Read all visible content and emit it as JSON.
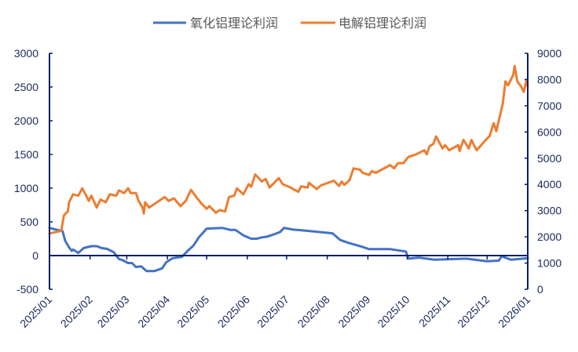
{
  "chart_data": {
    "type": "line",
    "title": "",
    "xlabel": "",
    "ylabel_left": "",
    "ylabel_right": "",
    "legend_position": "top",
    "grid": false,
    "axis_color": "#002060",
    "x_ticks": [
      "2025/01",
      "2025/02",
      "2025/03",
      "2025/04",
      "2025/05",
      "2025/06",
      "2025/07",
      "2025/08",
      "2025/09",
      "2025/10",
      "2025/11",
      "2025/12",
      "2026/01"
    ],
    "x_range": [
      "2025-01-01",
      "2026-01-01"
    ],
    "y_left": {
      "range": [
        -500,
        3000
      ],
      "ticks": [
        "-500",
        "0",
        "500",
        "1000",
        "1500",
        "2000",
        "2500",
        "3000"
      ]
    },
    "y_right": {
      "range": [
        0,
        9000
      ],
      "ticks": [
        "0",
        "1000",
        "2000",
        "3000",
        "4000",
        "5000",
        "6000",
        "7000",
        "8000",
        "9000"
      ]
    },
    "series": [
      {
        "name": "氧化铝理论利润",
        "axis": "left",
        "color": "#4472C4",
        "points": [
          [
            "2025-01-01",
            410
          ],
          [
            "2025-01-11",
            360
          ],
          [
            "2025-01-13",
            220
          ],
          [
            "2025-01-16",
            120
          ],
          [
            "2025-01-18",
            70
          ],
          [
            "2025-01-19",
            90
          ],
          [
            "2025-01-23",
            40
          ],
          [
            "2025-01-27",
            110
          ],
          [
            "2025-02-02",
            140
          ],
          [
            "2025-02-06",
            140
          ],
          [
            "2025-02-10",
            110
          ],
          [
            "2025-02-14",
            100
          ],
          [
            "2025-02-19",
            50
          ],
          [
            "2025-02-23",
            -50
          ],
          [
            "2025-02-26",
            -70
          ],
          [
            "2025-03-02",
            -110
          ],
          [
            "2025-03-05",
            -110
          ],
          [
            "2025-03-08",
            -170
          ],
          [
            "2025-03-12",
            -160
          ],
          [
            "2025-03-16",
            -230
          ],
          [
            "2025-03-22",
            -230
          ],
          [
            "2025-03-28",
            -190
          ],
          [
            "2025-03-31",
            -100
          ],
          [
            "2025-04-05",
            -40
          ],
          [
            "2025-04-12",
            -20
          ],
          [
            "2025-04-17",
            80
          ],
          [
            "2025-04-21",
            150
          ],
          [
            "2025-04-25",
            270
          ],
          [
            "2025-05-01",
            400
          ],
          [
            "2025-05-13",
            410
          ],
          [
            "2025-05-19",
            380
          ],
          [
            "2025-05-23",
            380
          ],
          [
            "2025-05-29",
            300
          ],
          [
            "2025-06-04",
            250
          ],
          [
            "2025-06-08",
            250
          ],
          [
            "2025-06-12",
            270
          ],
          [
            "2025-06-16",
            280
          ],
          [
            "2025-06-22",
            320
          ],
          [
            "2025-06-26",
            350
          ],
          [
            "2025-06-29",
            410
          ],
          [
            "2025-07-06",
            385
          ],
          [
            "2025-07-18",
            365
          ],
          [
            "2025-08-05",
            330
          ],
          [
            "2025-08-11",
            230
          ],
          [
            "2025-08-17",
            190
          ],
          [
            "2025-08-27",
            135
          ],
          [
            "2025-09-02",
            95
          ],
          [
            "2025-09-18",
            95
          ],
          [
            "2025-09-30",
            60
          ],
          [
            "2025-10-02",
            -45
          ],
          [
            "2025-10-10",
            -30
          ],
          [
            "2025-10-22",
            -60
          ],
          [
            "2025-11-15",
            -45
          ],
          [
            "2025-12-01",
            -85
          ],
          [
            "2025-12-10",
            -75
          ],
          [
            "2025-12-12",
            -10
          ],
          [
            "2025-12-19",
            -60
          ],
          [
            "2026-01-01",
            -40
          ]
        ]
      },
      {
        "name": "电解铝理论利润",
        "axis": "right",
        "color": "#ED7D31",
        "points": [
          [
            "2025-01-01",
            2130
          ],
          [
            "2025-01-10",
            2230
          ],
          [
            "2025-01-12",
            2820
          ],
          [
            "2025-01-15",
            2970
          ],
          [
            "2025-01-16",
            3320
          ],
          [
            "2025-01-19",
            3620
          ],
          [
            "2025-01-23",
            3570
          ],
          [
            "2025-01-26",
            3850
          ],
          [
            "2025-01-29",
            3570
          ],
          [
            "2025-01-31",
            3370
          ],
          [
            "2025-02-02",
            3570
          ],
          [
            "2025-02-06",
            3120
          ],
          [
            "2025-02-09",
            3420
          ],
          [
            "2025-02-13",
            3320
          ],
          [
            "2025-02-16",
            3620
          ],
          [
            "2025-02-21",
            3570
          ],
          [
            "2025-02-23",
            3770
          ],
          [
            "2025-02-27",
            3670
          ],
          [
            "2025-03-02",
            3850
          ],
          [
            "2025-03-04",
            3670
          ],
          [
            "2025-03-08",
            3670
          ],
          [
            "2025-03-10",
            3370
          ],
          [
            "2025-03-13",
            3120
          ],
          [
            "2025-03-14",
            2890
          ],
          [
            "2025-03-15",
            3320
          ],
          [
            "2025-03-18",
            3120
          ],
          [
            "2025-03-24",
            3320
          ],
          [
            "2025-03-30",
            3520
          ],
          [
            "2025-04-02",
            3370
          ],
          [
            "2025-04-06",
            3470
          ],
          [
            "2025-04-11",
            3170
          ],
          [
            "2025-04-15",
            3370
          ],
          [
            "2025-04-19",
            3790
          ],
          [
            "2025-04-23",
            3520
          ],
          [
            "2025-04-27",
            3270
          ],
          [
            "2025-05-01",
            3070
          ],
          [
            "2025-05-03",
            3170
          ],
          [
            "2025-05-08",
            2920
          ],
          [
            "2025-05-11",
            3020
          ],
          [
            "2025-05-15",
            2970
          ],
          [
            "2025-05-18",
            3520
          ],
          [
            "2025-05-22",
            3570
          ],
          [
            "2025-05-24",
            3850
          ],
          [
            "2025-05-29",
            3620
          ],
          [
            "2025-06-02",
            4010
          ],
          [
            "2025-06-04",
            3910
          ],
          [
            "2025-06-07",
            4380
          ],
          [
            "2025-06-12",
            4110
          ],
          [
            "2025-06-15",
            4210
          ],
          [
            "2025-06-18",
            3880
          ],
          [
            "2025-06-25",
            4240
          ],
          [
            "2025-06-28",
            4010
          ],
          [
            "2025-07-04",
            3880
          ],
          [
            "2025-07-06",
            3820
          ],
          [
            "2025-07-10",
            3720
          ],
          [
            "2025-07-12",
            3930
          ],
          [
            "2025-07-17",
            3880
          ],
          [
            "2025-07-18",
            4060
          ],
          [
            "2025-07-24",
            3820
          ],
          [
            "2025-07-27",
            3960
          ],
          [
            "2025-08-06",
            4140
          ],
          [
            "2025-08-10",
            3940
          ],
          [
            "2025-08-12",
            4110
          ],
          [
            "2025-08-14",
            3980
          ],
          [
            "2025-08-18",
            4160
          ],
          [
            "2025-08-21",
            4610
          ],
          [
            "2025-08-26",
            4560
          ],
          [
            "2025-08-28",
            4440
          ],
          [
            "2025-09-02",
            4360
          ],
          [
            "2025-09-04",
            4510
          ],
          [
            "2025-09-07",
            4440
          ],
          [
            "2025-09-18",
            4740
          ],
          [
            "2025-09-21",
            4610
          ],
          [
            "2025-09-24",
            4810
          ],
          [
            "2025-09-28",
            4810
          ],
          [
            "2025-10-02",
            5050
          ],
          [
            "2025-10-08",
            5150
          ],
          [
            "2025-10-14",
            5300
          ],
          [
            "2025-10-16",
            5150
          ],
          [
            "2025-10-18",
            5450
          ],
          [
            "2025-10-21",
            5550
          ],
          [
            "2025-10-23",
            5830
          ],
          [
            "2025-10-28",
            5370
          ],
          [
            "2025-10-30",
            5500
          ],
          [
            "2025-11-02",
            5300
          ],
          [
            "2025-11-09",
            5500
          ],
          [
            "2025-11-10",
            5270
          ],
          [
            "2025-11-13",
            5700
          ],
          [
            "2025-11-17",
            5370
          ],
          [
            "2025-11-19",
            5700
          ],
          [
            "2025-11-23",
            5300
          ],
          [
            "2025-11-30",
            5700
          ],
          [
            "2025-12-03",
            5850
          ],
          [
            "2025-12-06",
            6340
          ],
          [
            "2025-12-08",
            6030
          ],
          [
            "2025-12-13",
            7090
          ],
          [
            "2025-12-15",
            7930
          ],
          [
            "2025-12-17",
            7780
          ],
          [
            "2025-12-21",
            8180
          ],
          [
            "2025-12-22",
            8520
          ],
          [
            "2025-12-24",
            7930
          ],
          [
            "2025-12-27",
            7730
          ],
          [
            "2025-12-29",
            7530
          ],
          [
            "2025-12-31",
            7980
          ],
          [
            "2026-01-01",
            7730
          ]
        ]
      }
    ]
  }
}
